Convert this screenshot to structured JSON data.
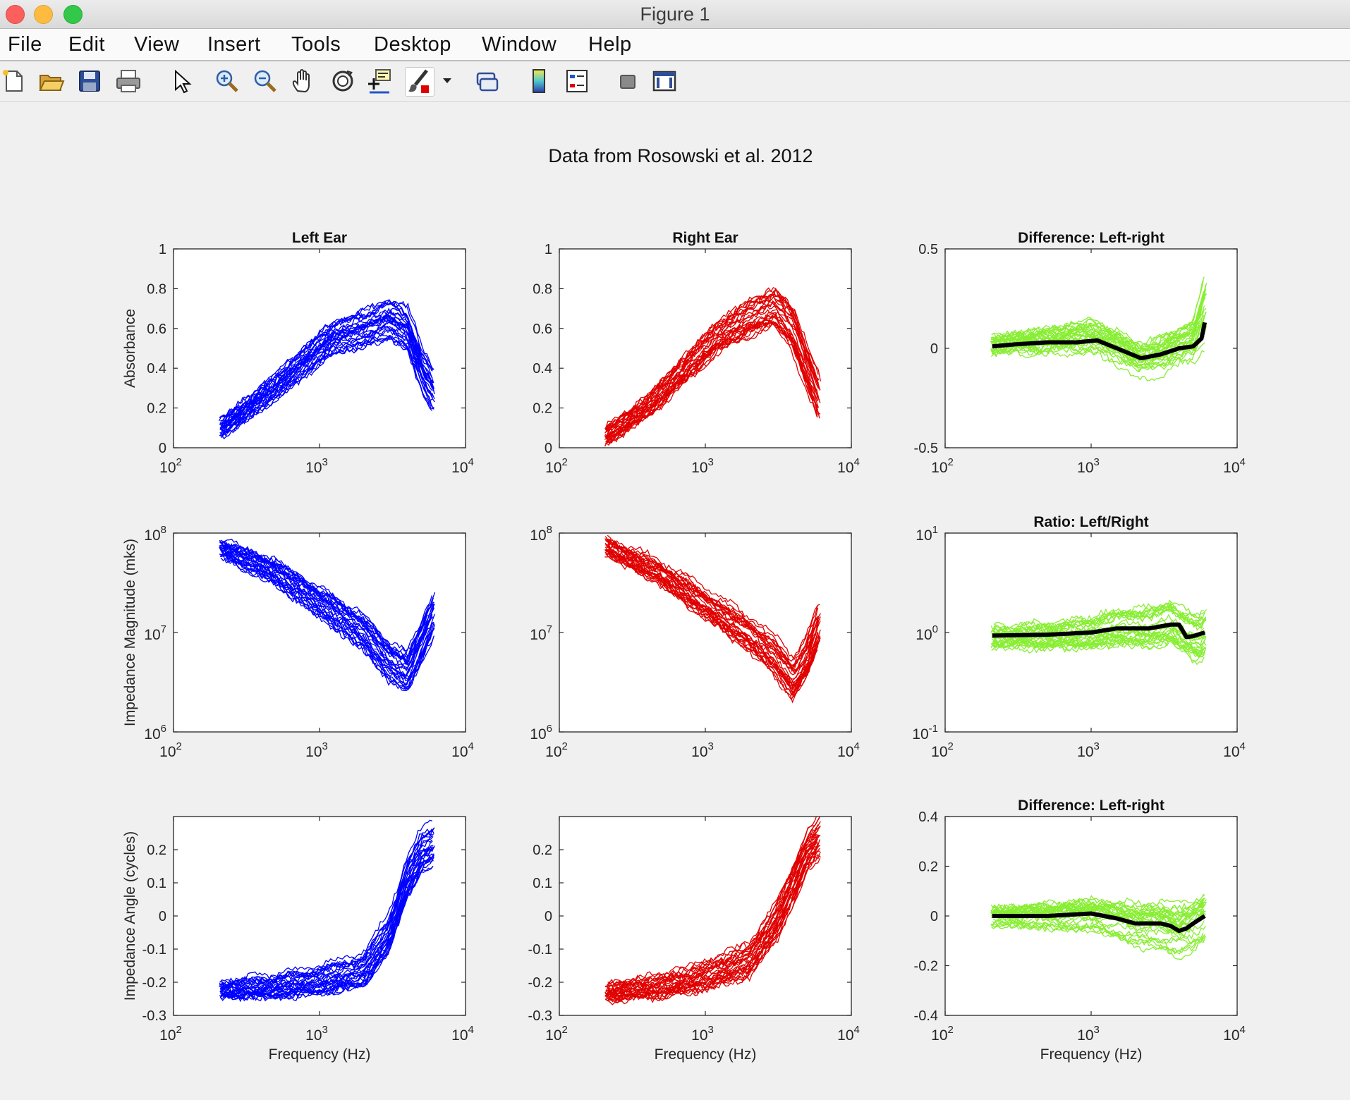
{
  "window": {
    "title": "Figure 1"
  },
  "menu": [
    "File",
    "Edit",
    "View",
    "Insert",
    "Tools",
    "Desktop",
    "Window",
    "Help"
  ],
  "toolbar": [
    {
      "icon": "new-figure-icon"
    },
    {
      "icon": "open-file-icon"
    },
    {
      "icon": "save-icon"
    },
    {
      "icon": "print-icon"
    },
    {
      "icon": "pointer-icon"
    },
    {
      "icon": "zoom-in-icon"
    },
    {
      "icon": "zoom-out-icon"
    },
    {
      "icon": "pan-hand-icon"
    },
    {
      "icon": "rotate-3d-icon"
    },
    {
      "icon": "data-cursor-icon"
    },
    {
      "icon": "brush-icon"
    },
    {
      "icon": "dropdown-arrow-icon"
    },
    {
      "icon": "link-plot-icon"
    },
    {
      "icon": "colorbar-icon"
    },
    {
      "icon": "legend-icon"
    },
    {
      "icon": "hide-plot-tools-icon"
    },
    {
      "icon": "show-plot-tools-icon"
    }
  ],
  "colors": {
    "left": "#0000ff",
    "right": "#e00000",
    "diff": "#88ee33",
    "mean": "#000000"
  },
  "figure_title": "Data from Rosowski et al. 2012",
  "chart_data": [
    {
      "id": "left-absorbance",
      "type": "line",
      "title": "Left Ear",
      "xlabel": "",
      "ylabel": "Absorbance",
      "xscale": "log",
      "xlim": [
        100,
        10000
      ],
      "yscale": "linear",
      "ylim": [
        0,
        1
      ],
      "xticks": [
        {
          "base": "10",
          "exp": "2"
        },
        {
          "base": "10",
          "exp": "3"
        },
        {
          "base": "10",
          "exp": "4"
        }
      ],
      "yticks": [
        "0",
        "0.2",
        "0.4",
        "0.6",
        "0.8",
        "1"
      ],
      "color": "left",
      "n_curves": 30,
      "shape": {
        "x": [
          210,
          400,
          700,
          1200,
          2000,
          3000,
          4000,
          5000,
          6000
        ],
        "y": [
          0.1,
          0.25,
          0.4,
          0.55,
          0.6,
          0.65,
          0.6,
          0.4,
          0.3
        ]
      }
    },
    {
      "id": "right-absorbance",
      "type": "line",
      "title": "Right Ear",
      "xlabel": "",
      "ylabel": "",
      "xscale": "log",
      "xlim": [
        100,
        10000
      ],
      "yscale": "linear",
      "ylim": [
        0,
        1
      ],
      "xticks": [
        {
          "base": "10",
          "exp": "2"
        },
        {
          "base": "10",
          "exp": "3"
        },
        {
          "base": "10",
          "exp": "4"
        }
      ],
      "yticks": [
        "0",
        "0.2",
        "0.4",
        "0.6",
        "0.8",
        "1"
      ],
      "color": "right",
      "n_curves": 30,
      "shape": {
        "x": [
          210,
          400,
          700,
          1200,
          2000,
          3000,
          4000,
          5000,
          6000
        ],
        "y": [
          0.06,
          0.2,
          0.38,
          0.55,
          0.65,
          0.7,
          0.6,
          0.4,
          0.25
        ]
      }
    },
    {
      "id": "absorbance-difference",
      "type": "line",
      "title": "Difference:  Left-right",
      "xlabel": "",
      "ylabel": "",
      "xscale": "log",
      "xlim": [
        100,
        10000
      ],
      "yscale": "linear",
      "ylim": [
        -0.5,
        0.5
      ],
      "xticks": [
        {
          "base": "10",
          "exp": "2"
        },
        {
          "base": "10",
          "exp": "3"
        },
        {
          "base": "10",
          "exp": "4"
        }
      ],
      "yticks": [
        "-0.5",
        "0",
        "0.5"
      ],
      "color": "diff",
      "n_curves": 30,
      "shape": {
        "x": [
          210,
          400,
          700,
          1000,
          1500,
          2200,
          3000,
          4000,
          5000,
          6000
        ],
        "y": [
          0.01,
          0.02,
          0.03,
          0.04,
          0.0,
          -0.05,
          -0.03,
          0.0,
          0.02,
          0.13
        ]
      },
      "mean": {
        "x": [
          210,
          300,
          500,
          800,
          1100,
          1500,
          2200,
          3000,
          4000,
          5000,
          5700,
          6000
        ],
        "y": [
          0.01,
          0.02,
          0.03,
          0.03,
          0.04,
          0.0,
          -0.05,
          -0.03,
          0.0,
          0.01,
          0.05,
          0.13
        ]
      }
    },
    {
      "id": "left-impedance-magnitude",
      "type": "line",
      "title": "",
      "xlabel": "",
      "ylabel": "Impedance Magnitude (mks)",
      "xscale": "log",
      "xlim": [
        100,
        10000
      ],
      "yscale": "log",
      "ylim": [
        1000000,
        100000000
      ],
      "xticks": [
        {
          "base": "10",
          "exp": "2"
        },
        {
          "base": "10",
          "exp": "3"
        },
        {
          "base": "10",
          "exp": "4"
        }
      ],
      "yticks": [
        {
          "base": "10",
          "exp": "6"
        },
        {
          "base": "10",
          "exp": "7"
        },
        {
          "base": "10",
          "exp": "8"
        }
      ],
      "color": "left",
      "n_curves": 30,
      "shape": {
        "x": [
          210,
          500,
          1000,
          2000,
          3000,
          4000,
          5000,
          6000
        ],
        "y": [
          70000000,
          40000000,
          20000000,
          10000000,
          5000000,
          4000000,
          8000000,
          15000000
        ]
      }
    },
    {
      "id": "right-impedance-magnitude",
      "type": "line",
      "title": "",
      "xlabel": "",
      "ylabel": "",
      "xscale": "log",
      "xlim": [
        100,
        10000
      ],
      "yscale": "log",
      "ylim": [
        1000000,
        100000000
      ],
      "xticks": [
        {
          "base": "10",
          "exp": "2"
        },
        {
          "base": "10",
          "exp": "3"
        },
        {
          "base": "10",
          "exp": "4"
        }
      ],
      "yticks": [
        {
          "base": "10",
          "exp": "6"
        },
        {
          "base": "10",
          "exp": "7"
        },
        {
          "base": "10",
          "exp": "8"
        }
      ],
      "color": "right",
      "n_curves": 30,
      "shape": {
        "x": [
          210,
          500,
          1000,
          2000,
          3000,
          4000,
          5000,
          6000
        ],
        "y": [
          75000000,
          40000000,
          20000000,
          10000000,
          6000000,
          3500000,
          6000000,
          12000000
        ]
      }
    },
    {
      "id": "impedance-magnitude-ratio",
      "type": "line",
      "title": "Ratio: Left/Right",
      "xlabel": "",
      "ylabel": "",
      "xscale": "log",
      "xlim": [
        100,
        10000
      ],
      "yscale": "log",
      "ylim": [
        0.1,
        10
      ],
      "xticks": [
        {
          "base": "10",
          "exp": "2"
        },
        {
          "base": "10",
          "exp": "3"
        },
        {
          "base": "10",
          "exp": "4"
        }
      ],
      "yticks": [
        {
          "base": "10",
          "exp": "-1"
        },
        {
          "base": "10",
          "exp": "0"
        },
        {
          "base": "10",
          "exp": "1"
        }
      ],
      "color": "diff",
      "n_curves": 30,
      "shape": {
        "x": [
          210,
          500,
          1000,
          1500,
          2500,
          3500,
          4500,
          5500,
          6000
        ],
        "y": [
          0.93,
          0.95,
          1.0,
          1.1,
          1.1,
          1.2,
          1.0,
          0.9,
          1.0
        ]
      },
      "mean": {
        "x": [
          210,
          500,
          1000,
          1500,
          2500,
          3500,
          4000,
          4500,
          5000,
          6000
        ],
        "y": [
          0.93,
          0.95,
          1.0,
          1.1,
          1.1,
          1.2,
          1.2,
          0.9,
          0.92,
          1.0
        ]
      }
    },
    {
      "id": "left-impedance-angle",
      "type": "line",
      "title": "",
      "xlabel": "Frequency (Hz)",
      "ylabel": "Impedance Angle (cycles)",
      "xscale": "log",
      "xlim": [
        100,
        10000
      ],
      "yscale": "linear",
      "ylim": [
        -0.3,
        0.3
      ],
      "xticks": [
        {
          "base": "10",
          "exp": "2"
        },
        {
          "base": "10",
          "exp": "3"
        },
        {
          "base": "10",
          "exp": "4"
        }
      ],
      "yticks": [
        "-0.3",
        "-0.2",
        "-0.1",
        "0",
        "0.1",
        "0.2"
      ],
      "color": "left",
      "n_curves": 30,
      "shape": {
        "x": [
          210,
          500,
          1000,
          2000,
          3000,
          4000,
          5000,
          6000
        ],
        "y": [
          -0.22,
          -0.21,
          -0.19,
          -0.16,
          -0.05,
          0.12,
          0.2,
          0.22
        ]
      }
    },
    {
      "id": "right-impedance-angle",
      "type": "line",
      "title": "",
      "xlabel": "Frequency (Hz)",
      "ylabel": "",
      "xscale": "log",
      "xlim": [
        100,
        10000
      ],
      "yscale": "linear",
      "ylim": [
        -0.3,
        0.3
      ],
      "xticks": [
        {
          "base": "10",
          "exp": "2"
        },
        {
          "base": "10",
          "exp": "3"
        },
        {
          "base": "10",
          "exp": "4"
        }
      ],
      "yticks": [
        "-0.3",
        "-0.2",
        "-0.1",
        "0",
        "0.1",
        "0.2"
      ],
      "color": "right",
      "n_curves": 30,
      "shape": {
        "x": [
          210,
          500,
          1000,
          2000,
          3000,
          4000,
          5000,
          6000
        ],
        "y": [
          -0.23,
          -0.21,
          -0.18,
          -0.13,
          -0.02,
          0.1,
          0.2,
          0.24
        ]
      }
    },
    {
      "id": "impedance-angle-difference",
      "type": "line",
      "title": "Difference:  Left-right",
      "xlabel": "Frequency (Hz)",
      "ylabel": "",
      "xscale": "log",
      "xlim": [
        100,
        10000
      ],
      "yscale": "linear",
      "ylim": [
        -0.4,
        0.4
      ],
      "xticks": [
        {
          "base": "10",
          "exp": "2"
        },
        {
          "base": "10",
          "exp": "3"
        },
        {
          "base": "10",
          "exp": "4"
        }
      ],
      "yticks": [
        "-0.4",
        "-0.2",
        "0",
        "0.2",
        "0.4"
      ],
      "color": "diff",
      "n_curves": 30,
      "shape": {
        "x": [
          210,
          500,
          1000,
          1500,
          2000,
          3000,
          4000,
          5000,
          6000
        ],
        "y": [
          0.0,
          0.0,
          0.005,
          -0.01,
          -0.03,
          -0.03,
          -0.05,
          -0.03,
          0.0
        ]
      },
      "mean": {
        "x": [
          210,
          500,
          1000,
          1500,
          2000,
          3000,
          3500,
          4000,
          4500,
          5000,
          6000
        ],
        "y": [
          0.0,
          0.0,
          0.01,
          -0.01,
          -0.03,
          -0.03,
          -0.04,
          -0.06,
          -0.05,
          -0.03,
          0.0
        ]
      }
    }
  ]
}
